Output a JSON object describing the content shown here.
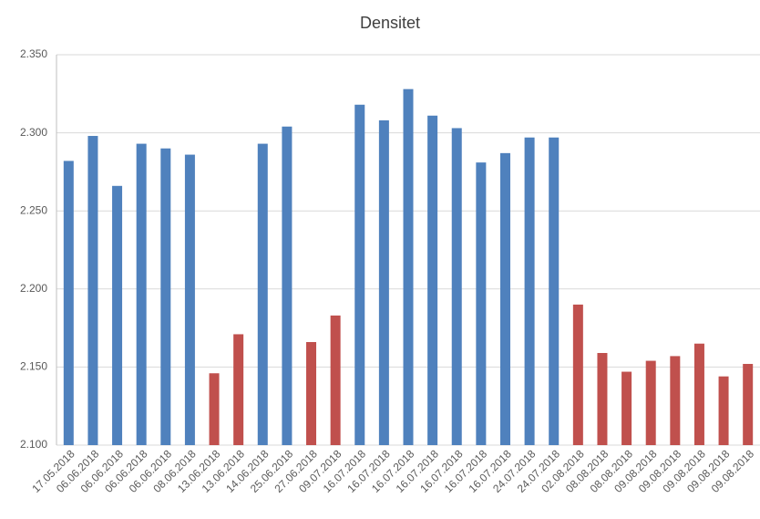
{
  "chart_data": {
    "type": "bar",
    "title": "Densitet",
    "categories": [
      "17.05.2018",
      "06.06.2018",
      "06.06.2018",
      "06.06.2018",
      "06.06.2018",
      "08.06.2018",
      "13.06.2018",
      "13.06.2018",
      "14.06.2018",
      "25.06.2018",
      "27.06.2018",
      "09.07.2018",
      "16.07.2018",
      "16.07.2018",
      "16.07.2018",
      "16.07.2018",
      "16.07.2018",
      "16.07.2018",
      "16.07.2018",
      "24.07.2018",
      "24.07.2018",
      "02.08.2018",
      "08.08.2018",
      "08.08.2018",
      "09.08.2018",
      "09.08.2018",
      "09.08.2018",
      "09.08.2018",
      "09.08.2018"
    ],
    "values": [
      2.282,
      2.298,
      2.266,
      2.293,
      2.29,
      2.286,
      2.146,
      2.171,
      2.293,
      2.304,
      2.166,
      2.183,
      2.318,
      2.308,
      2.328,
      2.311,
      2.303,
      2.281,
      2.287,
      2.297,
      2.297,
      2.19,
      2.159,
      2.147,
      2.154,
      2.157,
      2.165,
      2.144,
      2.152
    ],
    "colors": [
      "#4f81bd",
      "#4f81bd",
      "#4f81bd",
      "#4f81bd",
      "#4f81bd",
      "#4f81bd",
      "#c0504d",
      "#c0504d",
      "#4f81bd",
      "#4f81bd",
      "#c0504d",
      "#c0504d",
      "#4f81bd",
      "#4f81bd",
      "#4f81bd",
      "#4f81bd",
      "#4f81bd",
      "#4f81bd",
      "#4f81bd",
      "#4f81bd",
      "#4f81bd",
      "#c0504d",
      "#c0504d",
      "#c0504d",
      "#c0504d",
      "#c0504d",
      "#c0504d",
      "#c0504d",
      "#c0504d"
    ],
    "ylim": [
      2.1,
      2.35
    ],
    "yticks": [
      {
        "value": 2.1,
        "label": "2.100"
      },
      {
        "value": 2.15,
        "label": "2.150"
      },
      {
        "value": 2.2,
        "label": "2.200"
      },
      {
        "value": 2.25,
        "label": "2.250"
      },
      {
        "value": 2.3,
        "label": "2.300"
      },
      {
        "value": 2.35,
        "label": "2.350"
      }
    ],
    "grid": true
  }
}
